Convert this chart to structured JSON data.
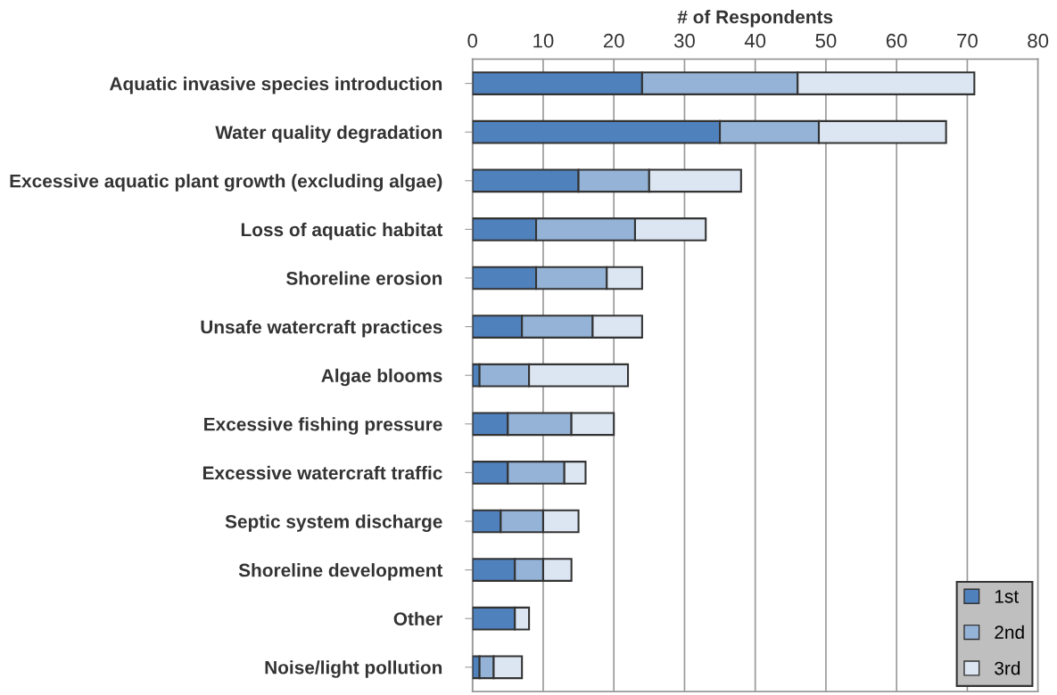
{
  "chart_data": {
    "type": "bar",
    "orientation": "horizontal",
    "stacked": true,
    "xlabel": "# of Respondents",
    "categories": [
      "Aquatic invasive species introduction",
      "Water quality degradation",
      "Excessive aquatic plant growth (excluding algae)",
      "Loss of aquatic habitat",
      "Shoreline erosion",
      "Unsafe watercraft practices",
      "Algae blooms",
      "Excessive fishing pressure",
      "Excessive watercraft traffic",
      "Septic system discharge",
      "Shoreline development",
      "Other",
      "Noise/light pollution"
    ],
    "series": [
      {
        "name": "1st",
        "color": "#4f81bd",
        "values": [
          24,
          35,
          15,
          9,
          9,
          7,
          1,
          5,
          5,
          4,
          6,
          6,
          1
        ]
      },
      {
        "name": "2nd",
        "color": "#95b3d7",
        "values": [
          22,
          14,
          10,
          14,
          10,
          10,
          7,
          9,
          8,
          6,
          4,
          0,
          2
        ]
      },
      {
        "name": "3rd",
        "color": "#dce6f2",
        "values": [
          25,
          18,
          13,
          10,
          5,
          7,
          14,
          6,
          3,
          5,
          4,
          2,
          4
        ]
      }
    ],
    "xlim": [
      0,
      80
    ],
    "xticks": [
      0,
      10,
      20,
      30,
      40,
      50,
      60,
      70,
      80
    ],
    "grid": "x",
    "legend": "bottom right"
  }
}
